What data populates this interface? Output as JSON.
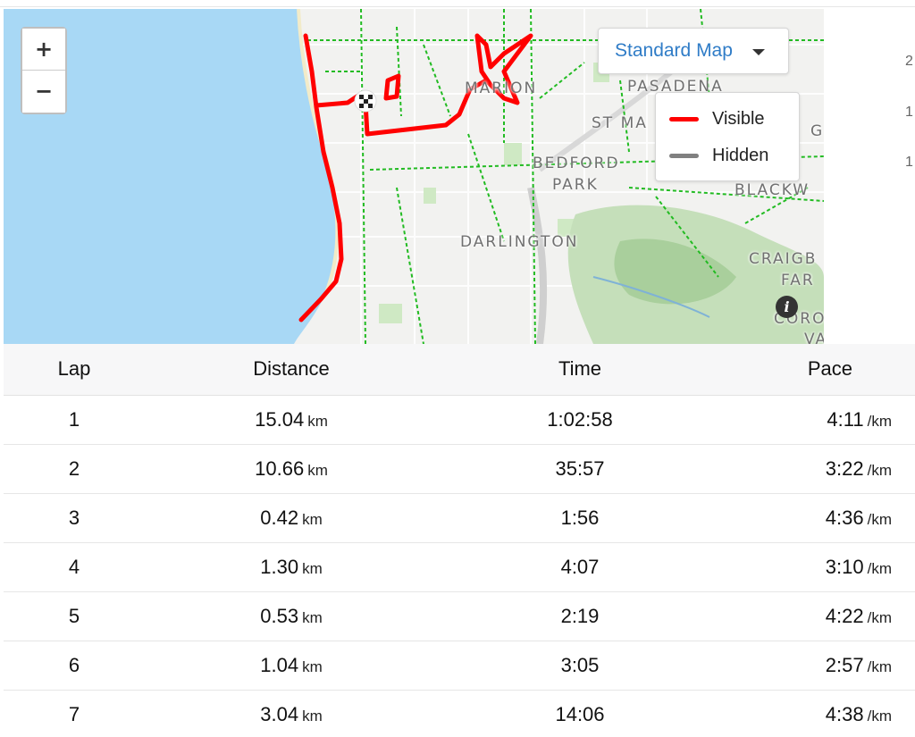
{
  "map": {
    "zoom_in_label": "+",
    "zoom_out_label": "−",
    "map_type": {
      "selected": "Standard Map"
    },
    "legend": {
      "items": [
        {
          "label": "Visible",
          "color": "#ff0000"
        },
        {
          "label": "Hidden",
          "color": "#808080"
        }
      ]
    },
    "places": [
      "MARION",
      "PASADENA",
      "ST MA",
      "BEDFORD",
      "PARK",
      "BLACKW",
      "DARLINGTON",
      "CRAIGB",
      "FAR",
      "CORO",
      "VA",
      "G"
    ],
    "route_color": "#ff0000",
    "water_color": "#a8d8f5",
    "trail_color": "#22bb22",
    "info_icon": "info-icon",
    "finish_icon": "checkered-flag-icon"
  },
  "side_ticks": [
    "2",
    "1",
    "1"
  ],
  "laps_table": {
    "headers": {
      "lap": "Lap",
      "distance": "Distance",
      "time": "Time",
      "pace": "Pace"
    },
    "rows": [
      {
        "lap": "1",
        "distance": "15.04",
        "distance_unit": "km",
        "time": "1:02:58",
        "pace": "4:11",
        "pace_unit": "/km"
      },
      {
        "lap": "2",
        "distance": "10.66",
        "distance_unit": "km",
        "time": "35:57",
        "pace": "3:22",
        "pace_unit": "/km"
      },
      {
        "lap": "3",
        "distance": "0.42",
        "distance_unit": "km",
        "time": "1:56",
        "pace": "4:36",
        "pace_unit": "/km"
      },
      {
        "lap": "4",
        "distance": "1.30",
        "distance_unit": "km",
        "time": "4:07",
        "pace": "3:10",
        "pace_unit": "/km"
      },
      {
        "lap": "5",
        "distance": "0.53",
        "distance_unit": "km",
        "time": "2:19",
        "pace": "4:22",
        "pace_unit": "/km"
      },
      {
        "lap": "6",
        "distance": "1.04",
        "distance_unit": "km",
        "time": "3:05",
        "pace": "2:57",
        "pace_unit": "/km"
      },
      {
        "lap": "7",
        "distance": "3.04",
        "distance_unit": "km",
        "time": "14:06",
        "pace": "4:38",
        "pace_unit": "/km"
      }
    ]
  }
}
